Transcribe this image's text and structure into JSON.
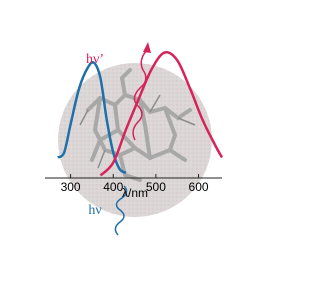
{
  "chart_data": {
    "type": "line",
    "x_label": "λ/nm",
    "xlim": [
      240,
      655
    ],
    "xticks": [
      300,
      400,
      500,
      600
    ],
    "ylim": [
      0,
      1
    ],
    "series": [
      {
        "name": "hν",
        "color": "#1f6fa8",
        "x": [
          270,
          285,
          300,
          320,
          340,
          355,
          370,
          385,
          400,
          415,
          430
        ],
        "values": [
          0.16,
          0.2,
          0.42,
          0.7,
          0.86,
          0.9,
          0.78,
          0.45,
          0.2,
          0.07,
          0.04
        ]
      },
      {
        "name": "hν’",
        "color": "#d6245a",
        "x": [
          370,
          400,
          430,
          460,
          490,
          520,
          550,
          580,
          610,
          640,
          655
        ],
        "values": [
          0.02,
          0.12,
          0.38,
          0.62,
          0.85,
          0.98,
          0.92,
          0.7,
          0.45,
          0.25,
          0.16
        ]
      }
    ]
  }
}
